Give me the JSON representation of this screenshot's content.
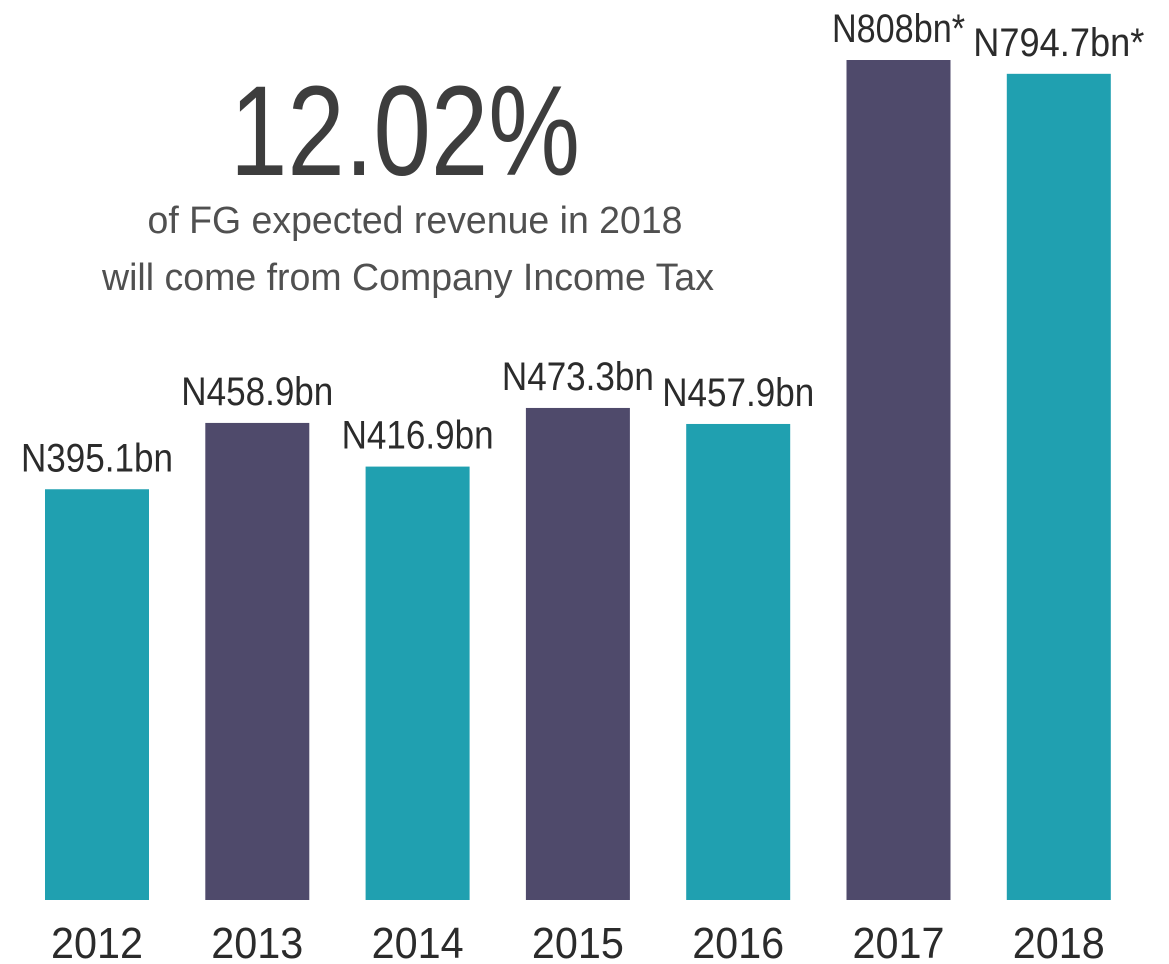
{
  "chart_data": {
    "type": "bar",
    "headline": "12.02%",
    "note": [
      "of FG expected revenue in 2018",
      "will come from Company Income Tax"
    ],
    "categories": [
      "2012",
      "2013",
      "2014",
      "2015",
      "2016",
      "2017",
      "2018"
    ],
    "values": [
      395.1,
      458.9,
      416.9,
      473.3,
      457.9,
      808,
      794.7
    ],
    "value_labels": [
      "N395.1bn",
      "N458.9bn",
      "N416.9bn",
      "N473.3bn",
      "N457.9bn",
      "N808bn*",
      "N794.7bn*"
    ],
    "colors": [
      "#20a0b0",
      "#4f4a6b",
      "#20a0b0",
      "#4f4a6b",
      "#20a0b0",
      "#4f4a6b",
      "#20a0b0"
    ]
  }
}
